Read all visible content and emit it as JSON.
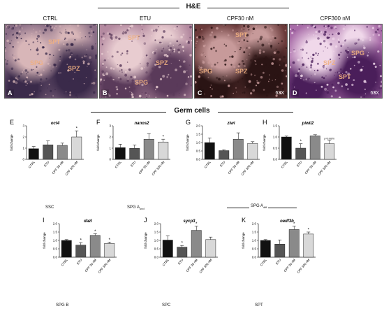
{
  "he": {
    "title": "H&E",
    "panels": [
      {
        "letter": "A",
        "label": "CTRL",
        "regions": [
          "SPT",
          "SPG",
          "SPZ"
        ],
        "magnification": "",
        "colors": {
          "base": "#8a6e86",
          "dark": "#3a2a4a",
          "light": "#d8b6b8"
        }
      },
      {
        "letter": "B",
        "label": "ETU",
        "regions": [
          "SPT",
          "SPZ",
          "SPG"
        ],
        "magnification": "",
        "colors": {
          "base": "#b48aa0",
          "dark": "#5a3a5a",
          "light": "#e8ccd0"
        }
      },
      {
        "letter": "C",
        "label": "CPF30 nM",
        "regions": [
          "SPT",
          "SPG",
          "SPZ"
        ],
        "magnification": "63X",
        "colors": {
          "base": "#6a3a3a",
          "dark": "#2a1414",
          "light": "#c79a9a"
        }
      },
      {
        "letter": "D",
        "label": "CPF300 nM",
        "regions": [
          "SPG",
          "SPZ",
          "SPT"
        ],
        "magnification": "63X",
        "colors": {
          "base": "#a86ca8",
          "dark": "#4a1e5a",
          "light": "#f0d8ea"
        }
      }
    ]
  },
  "germ": {
    "title": "Germ cells"
  },
  "chart_data": [
    {
      "type": "bar",
      "panel": "E",
      "gene": "oct4",
      "ylabel": "fold change",
      "ylim": [
        0,
        3
      ],
      "yticks": [
        0,
        1,
        2,
        3
      ],
      "categories": [
        "CTRL",
        "ETU",
        "CPF 30 nM",
        "CPF 300 nM"
      ],
      "values": [
        0.95,
        1.3,
        1.25,
        2.0
      ],
      "errors": [
        0.2,
        0.35,
        0.2,
        0.55
      ],
      "stars": [
        "",
        "",
        "",
        "*"
      ],
      "colors": [
        "#111111",
        "#555555",
        "#8a8a8a",
        "#d8d8d8"
      ]
    },
    {
      "type": "bar",
      "panel": "F",
      "gene": "nanos2",
      "ylabel": "fold change",
      "ylim": [
        0,
        3
      ],
      "yticks": [
        0,
        1,
        2,
        3
      ],
      "categories": [
        "CTRL",
        "ETU",
        "CPF 30 nM",
        "CPF 300 nM"
      ],
      "values": [
        1.05,
        0.98,
        1.8,
        1.55
      ],
      "errors": [
        0.3,
        0.3,
        0.5,
        0.25
      ],
      "stars": [
        "",
        "",
        "",
        "*"
      ],
      "colors": [
        "#111111",
        "#555555",
        "#8a8a8a",
        "#d8d8d8"
      ]
    },
    {
      "type": "bar",
      "panel": "G",
      "gene": "ziwi",
      "ylabel": "fold change",
      "ylim": [
        0,
        2
      ],
      "yticks": [
        0.0,
        0.5,
        1.0,
        1.5,
        2.0
      ],
      "categories": [
        "CTRL",
        "ETU",
        "CPF 30 nM",
        "CPF 300 nM"
      ],
      "values": [
        1.0,
        0.52,
        1.2,
        0.95
      ],
      "errors": [
        0.28,
        0.05,
        0.38,
        0.1
      ],
      "stars": [
        "",
        "",
        "",
        ""
      ],
      "colors": [
        "#111111",
        "#555555",
        "#8a8a8a",
        "#d8d8d8"
      ]
    },
    {
      "type": "bar",
      "panel": "H",
      "gene": "piwil2",
      "ylabel": "fold change",
      "ylim": [
        0,
        1.5
      ],
      "yticks": [
        0.0,
        0.5,
        1.0,
        1.5
      ],
      "categories": [
        "CTRL",
        "ETU",
        "CPF 30 nM",
        "CPF 300 nM"
      ],
      "values": [
        1.0,
        0.5,
        1.05,
        0.7
      ],
      "errors": [
        0.04,
        0.2,
        0.05,
        0.15
      ],
      "stars": [
        "",
        "*",
        "",
        "p=0.0870"
      ],
      "colors": [
        "#111111",
        "#555555",
        "#8a8a8a",
        "#d8d8d8"
      ]
    },
    {
      "type": "bar",
      "panel": "I",
      "gene": "dazl",
      "ylabel": "fold change",
      "ylim": [
        0,
        2
      ],
      "yticks": [
        0.0,
        0.5,
        1.0,
        1.5,
        2.0
      ],
      "categories": [
        "CTRL",
        "ETU",
        "CPF 30 nM",
        "CPF 300 nM"
      ],
      "values": [
        1.0,
        0.72,
        1.3,
        0.82
      ],
      "errors": [
        0.05,
        0.15,
        0.1,
        0.08
      ],
      "stars": [
        "",
        "*",
        "*",
        "*"
      ],
      "colors": [
        "#111111",
        "#555555",
        "#8a8a8a",
        "#d8d8d8"
      ]
    },
    {
      "type": "bar",
      "panel": "J",
      "gene": "sycp3",
      "ylabel": "fold change",
      "ylim": [
        0,
        2
      ],
      "yticks": [
        0.0,
        0.5,
        1.0,
        1.5,
        2.0
      ],
      "categories": [
        "CTRL",
        "ETU",
        "CPF 30 nM",
        "CPF 300 nM"
      ],
      "values": [
        1.02,
        0.6,
        1.6,
        1.05
      ],
      "errors": [
        0.25,
        0.1,
        0.25,
        0.15
      ],
      "stars": [
        "",
        "*",
        "*",
        ""
      ],
      "colors": [
        "#111111",
        "#555555",
        "#8a8a8a",
        "#d8d8d8"
      ]
    },
    {
      "type": "bar",
      "panel": "K",
      "gene": "oedf3b",
      "ylabel": "fold change",
      "ylim": [
        0,
        2
      ],
      "yticks": [
        0.0,
        0.5,
        1.0,
        1.5,
        2.0
      ],
      "categories": [
        "CTRL",
        "ETU",
        "CPF 30 nM",
        "CPF 300 nM"
      ],
      "values": [
        1.0,
        0.78,
        1.65,
        1.38
      ],
      "errors": [
        0.05,
        0.25,
        0.2,
        0.12
      ],
      "stars": [
        "",
        "",
        "*",
        "*"
      ],
      "colors": [
        "#111111",
        "#555555",
        "#8a8a8a",
        "#d8d8d8"
      ]
    }
  ],
  "captions": {
    "ssc": "SSC",
    "spg_aund_main": "SPG A",
    "spg_aund_sub": "und",
    "spg_adiff_main": "SPG A",
    "spg_adiff_sub": "diff",
    "spg_b": "SPG B",
    "spc": "SPC",
    "spt": "SPT"
  }
}
